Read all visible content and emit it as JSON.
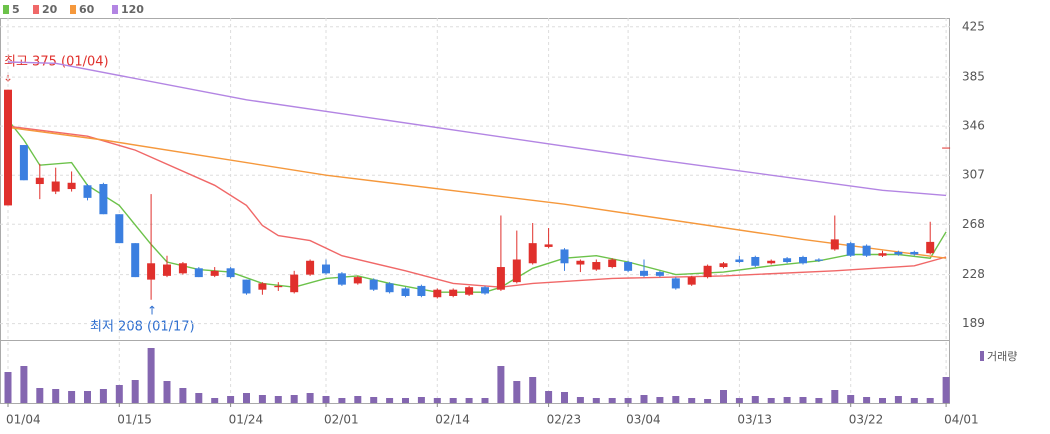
{
  "chart_data": [
    {
      "type": "candlestick",
      "categories": [
        "01/04",
        null,
        null,
        null,
        null,
        null,
        null,
        "01/15",
        null,
        null,
        null,
        null,
        null,
        null,
        "01/24",
        null,
        null,
        null,
        null,
        null,
        "02/01",
        null,
        null,
        null,
        null,
        null,
        null,
        "02/14",
        null,
        null,
        null,
        null,
        null,
        null,
        "02/23",
        null,
        null,
        null,
        null,
        "03/04",
        null,
        null,
        null,
        null,
        null,
        null,
        "03/13",
        null,
        null,
        null,
        null,
        null,
        null,
        "03/22",
        null,
        null,
        null,
        null,
        null,
        "04/01"
      ],
      "open": [
        283,
        331,
        300,
        294,
        296,
        299,
        300,
        276,
        253,
        224,
        227,
        229,
        233,
        227,
        233,
        224,
        216,
        218,
        214,
        228,
        236,
        229,
        221,
        224,
        221,
        217,
        219,
        210,
        211,
        212,
        218,
        216,
        222,
        237,
        250,
        248,
        236,
        232,
        234,
        238,
        231,
        230,
        225,
        220,
        226,
        234,
        240,
        242,
        237,
        241,
        242,
        240,
        248,
        253,
        251,
        243,
        246,
        246,
        245,
        329
      ],
      "high": [
        375,
        331,
        316,
        313,
        310,
        300,
        301,
        276,
        253,
        292,
        243,
        238,
        234,
        234,
        234,
        224,
        222,
        222,
        231,
        240,
        240,
        230,
        227,
        225,
        222,
        218,
        220,
        217,
        217,
        219,
        219,
        275,
        263,
        269,
        265,
        249,
        240,
        240,
        241,
        239,
        240,
        231,
        226,
        227,
        236,
        238,
        243,
        243,
        240,
        242,
        243,
        241,
        275,
        254,
        252,
        247,
        247,
        247,
        270,
        329
      ],
      "low": [
        283,
        303,
        288,
        292,
        294,
        287,
        276,
        253,
        226,
        208,
        226,
        228,
        226,
        226,
        225,
        212,
        212,
        215,
        213,
        227,
        228,
        219,
        220,
        215,
        213,
        210,
        210,
        209,
        210,
        211,
        212,
        215,
        221,
        236,
        249,
        231,
        230,
        231,
        233,
        230,
        226,
        226,
        216,
        219,
        225,
        233,
        237,
        234,
        236,
        237,
        236,
        238,
        247,
        242,
        242,
        242,
        243,
        243,
        244,
        329
      ],
      "close": [
        375,
        303,
        305,
        302,
        301,
        289,
        276,
        253,
        226,
        237,
        236,
        237,
        226,
        231,
        226,
        213,
        221,
        219,
        228,
        239,
        229,
        220,
        226,
        216,
        214,
        211,
        211,
        216,
        216,
        218,
        213,
        234,
        240,
        253,
        252,
        237,
        239,
        238,
        240,
        231,
        227,
        227,
        217,
        226,
        235,
        237,
        238,
        235,
        239,
        238,
        237,
        239,
        256,
        243,
        243,
        245,
        244,
        244,
        254,
        329
      ],
      "up_color": "#e0302c",
      "down_color": "#3b7fe0",
      "ylim": [
        176,
        432
      ],
      "yticks": [
        189,
        228,
        268,
        307,
        346,
        385,
        425
      ],
      "grid": true,
      "series": [
        {
          "name": "5",
          "color": "#6cc24a",
          "x": [
            0,
            1,
            2,
            4,
            5,
            7,
            9,
            10,
            12,
            14,
            16,
            18,
            20,
            22,
            24,
            27,
            30,
            31,
            33,
            35,
            37,
            39,
            42,
            45,
            48,
            51,
            53,
            56,
            58,
            59
          ],
          "values": [
            351,
            335,
            315,
            317,
            299,
            283,
            252,
            238,
            232,
            230,
            221,
            218,
            225,
            227,
            221,
            214,
            214,
            218,
            233,
            241,
            243,
            238,
            228,
            230,
            235,
            239,
            244,
            244,
            241,
            262
          ]
        },
        {
          "name": "20",
          "color": "#f06868",
          "x": [
            0,
            5,
            8,
            13,
            15,
            16,
            17,
            19,
            21,
            25,
            28,
            31,
            33,
            38,
            45,
            52,
            57,
            59
          ],
          "values": [
            346,
            338,
            327,
            299,
            283,
            267,
            259,
            255,
            243,
            231,
            221,
            218,
            221,
            225,
            227,
            231,
            235,
            242
          ]
        },
        {
          "name": "60",
          "color": "#f5983c",
          "x": [
            0,
            6,
            20,
            35,
            50,
            59
          ],
          "values": [
            345,
            335,
            307,
            284,
            256,
            241
          ]
        },
        {
          "name": "120",
          "color": "#b385e3",
          "x": [
            0,
            3,
            15,
            28,
            41,
            55,
            59
          ],
          "values": [
            397,
            396,
            367,
            343,
            319,
            295,
            291
          ]
        }
      ],
      "annotations": [
        "최고 375 (01/04)",
        "최저 208 (01/17)"
      ]
    },
    {
      "type": "bar",
      "name": "거래량",
      "color": "#8466b0",
      "ylim": [
        0,
        63
      ],
      "values": [
        31,
        37,
        15,
        14,
        12,
        12,
        14,
        18,
        23,
        55,
        22,
        15,
        10,
        5,
        7,
        10,
        8,
        7,
        8,
        10,
        7,
        5,
        7,
        6,
        5,
        5,
        6,
        5,
        5,
        5,
        5,
        37,
        22,
        26,
        12,
        11,
        6,
        5,
        5,
        5,
        8,
        6,
        7,
        5,
        4,
        13,
        5,
        7,
        5,
        6,
        6,
        5,
        13,
        8,
        6,
        5,
        7,
        5,
        5,
        26
      ]
    }
  ]
}
